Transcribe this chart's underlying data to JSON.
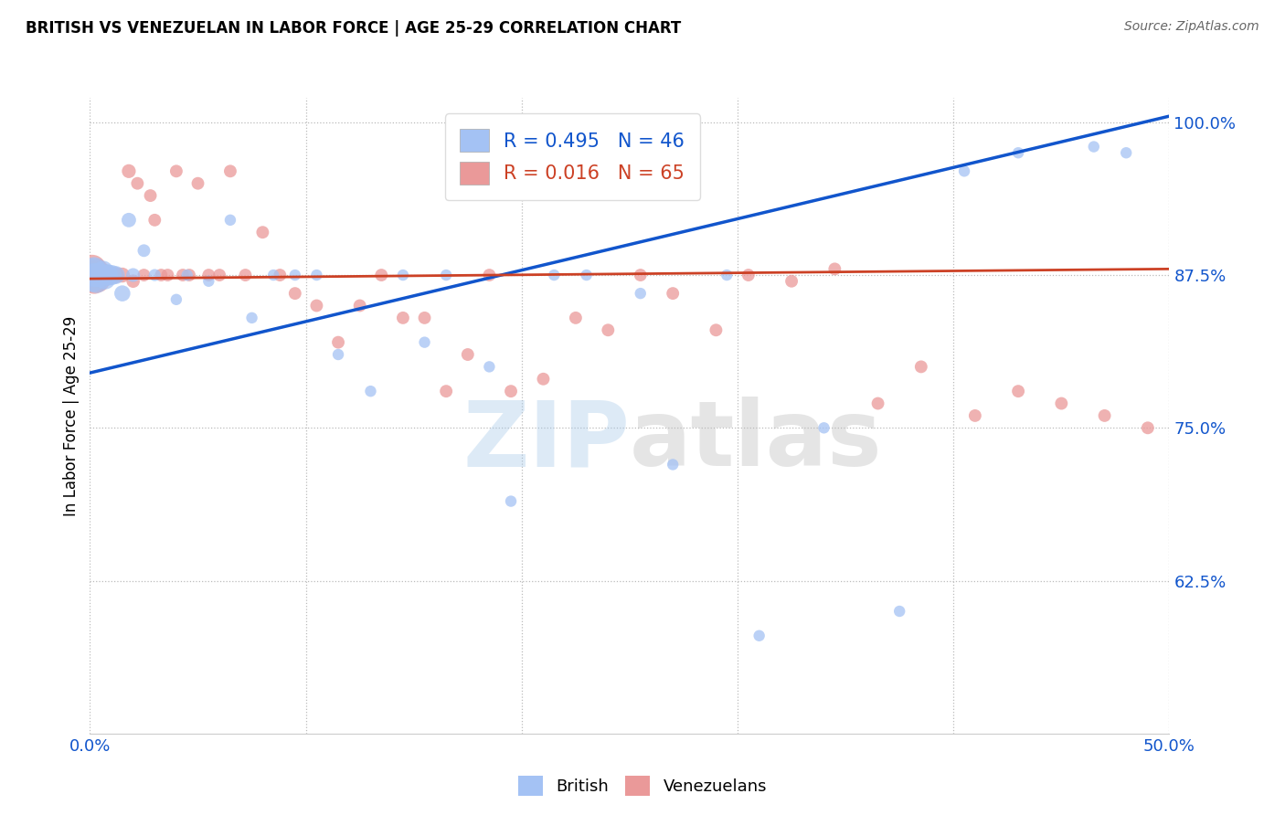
{
  "title": "BRITISH VS VENEZUELAN IN LABOR FORCE | AGE 25-29 CORRELATION CHART",
  "source": "Source: ZipAtlas.com",
  "ylabel": "In Labor Force | Age 25-29",
  "xlim": [
    0.0,
    0.5
  ],
  "ylim": [
    0.5,
    1.02
  ],
  "yticks": [
    0.625,
    0.75,
    0.875,
    1.0
  ],
  "ytick_labels": [
    "62.5%",
    "75.0%",
    "87.5%",
    "100.0%"
  ],
  "xticks": [
    0.0,
    0.1,
    0.2,
    0.3,
    0.4,
    0.5
  ],
  "xtick_labels": [
    "0.0%",
    "",
    "",
    "",
    "",
    "50.0%"
  ],
  "legend_british_R": "R = 0.495",
  "legend_british_N": "N = 46",
  "legend_venezuelan_R": "R = 0.016",
  "legend_venezuelan_N": "N = 65",
  "british_color": "#a4c2f4",
  "venezuelan_color": "#ea9999",
  "british_line_color": "#1155cc",
  "venezuelan_line_color": "#cc4125",
  "watermark_zip": "ZIP",
  "watermark_atlas": "atlas",
  "brit_line_x": [
    0.0,
    0.5
  ],
  "brit_line_y": [
    0.795,
    1.005
  ],
  "ven_line_x": [
    0.0,
    0.5
  ],
  "ven_line_y": [
    0.872,
    0.88
  ],
  "british_x": [
    0.001,
    0.002,
    0.002,
    0.003,
    0.003,
    0.004,
    0.005,
    0.005,
    0.006,
    0.007,
    0.008,
    0.008,
    0.01,
    0.012,
    0.015,
    0.018,
    0.02,
    0.025,
    0.03,
    0.04,
    0.045,
    0.055,
    0.065,
    0.075,
    0.085,
    0.095,
    0.105,
    0.115,
    0.13,
    0.145,
    0.155,
    0.165,
    0.185,
    0.195,
    0.215,
    0.23,
    0.255,
    0.27,
    0.295,
    0.31,
    0.34,
    0.375,
    0.405,
    0.43,
    0.465,
    0.48
  ],
  "british_y": [
    0.875,
    0.875,
    0.88,
    0.87,
    0.875,
    0.875,
    0.875,
    0.875,
    0.878,
    0.872,
    0.875,
    0.875,
    0.875,
    0.875,
    0.86,
    0.92,
    0.875,
    0.895,
    0.875,
    0.855,
    0.875,
    0.87,
    0.92,
    0.84,
    0.875,
    0.875,
    0.875,
    0.81,
    0.78,
    0.875,
    0.82,
    0.875,
    0.8,
    0.69,
    0.875,
    0.875,
    0.86,
    0.72,
    0.875,
    0.58,
    0.75,
    0.6,
    0.96,
    0.975,
    0.98,
    0.975
  ],
  "british_s": [
    700,
    350,
    350,
    350,
    350,
    350,
    280,
    280,
    280,
    280,
    280,
    280,
    250,
    200,
    160,
    130,
    120,
    100,
    90,
    80,
    80,
    80,
    80,
    80,
    80,
    80,
    80,
    80,
    80,
    80,
    80,
    80,
    80,
    80,
    80,
    80,
    80,
    80,
    80,
    80,
    80,
    80,
    80,
    80,
    80,
    80
  ],
  "venezuelan_x": [
    0.001,
    0.001,
    0.002,
    0.002,
    0.003,
    0.003,
    0.004,
    0.004,
    0.005,
    0.005,
    0.006,
    0.006,
    0.007,
    0.007,
    0.008,
    0.008,
    0.009,
    0.01,
    0.012,
    0.015,
    0.018,
    0.02,
    0.022,
    0.025,
    0.028,
    0.03,
    0.033,
    0.036,
    0.04,
    0.043,
    0.046,
    0.05,
    0.055,
    0.06,
    0.065,
    0.072,
    0.08,
    0.088,
    0.095,
    0.105,
    0.115,
    0.125,
    0.135,
    0.145,
    0.155,
    0.165,
    0.175,
    0.185,
    0.195,
    0.21,
    0.225,
    0.24,
    0.255,
    0.27,
    0.29,
    0.305,
    0.325,
    0.345,
    0.365,
    0.385,
    0.41,
    0.43,
    0.45,
    0.47,
    0.49
  ],
  "venezuelan_y": [
    0.875,
    0.88,
    0.875,
    0.87,
    0.878,
    0.872,
    0.875,
    0.87,
    0.876,
    0.875,
    0.874,
    0.876,
    0.875,
    0.875,
    0.875,
    0.875,
    0.875,
    0.875,
    0.875,
    0.875,
    0.96,
    0.87,
    0.95,
    0.875,
    0.94,
    0.92,
    0.875,
    0.875,
    0.96,
    0.875,
    0.875,
    0.95,
    0.875,
    0.875,
    0.96,
    0.875,
    0.91,
    0.875,
    0.86,
    0.85,
    0.82,
    0.85,
    0.875,
    0.84,
    0.84,
    0.78,
    0.81,
    0.875,
    0.78,
    0.79,
    0.84,
    0.83,
    0.875,
    0.86,
    0.83,
    0.875,
    0.87,
    0.88,
    0.77,
    0.8,
    0.76,
    0.78,
    0.77,
    0.76,
    0.75
  ],
  "venezuelan_s": [
    700,
    500,
    500,
    400,
    400,
    350,
    350,
    300,
    300,
    280,
    280,
    260,
    260,
    240,
    240,
    220,
    200,
    180,
    160,
    140,
    120,
    110,
    100,
    100,
    100,
    100,
    100,
    100,
    100,
    100,
    100,
    100,
    100,
    100,
    100,
    100,
    100,
    100,
    100,
    100,
    100,
    100,
    100,
    100,
    100,
    100,
    100,
    100,
    100,
    100,
    100,
    100,
    100,
    100,
    100,
    100,
    100,
    100,
    100,
    100,
    100,
    100,
    100,
    100,
    100
  ]
}
